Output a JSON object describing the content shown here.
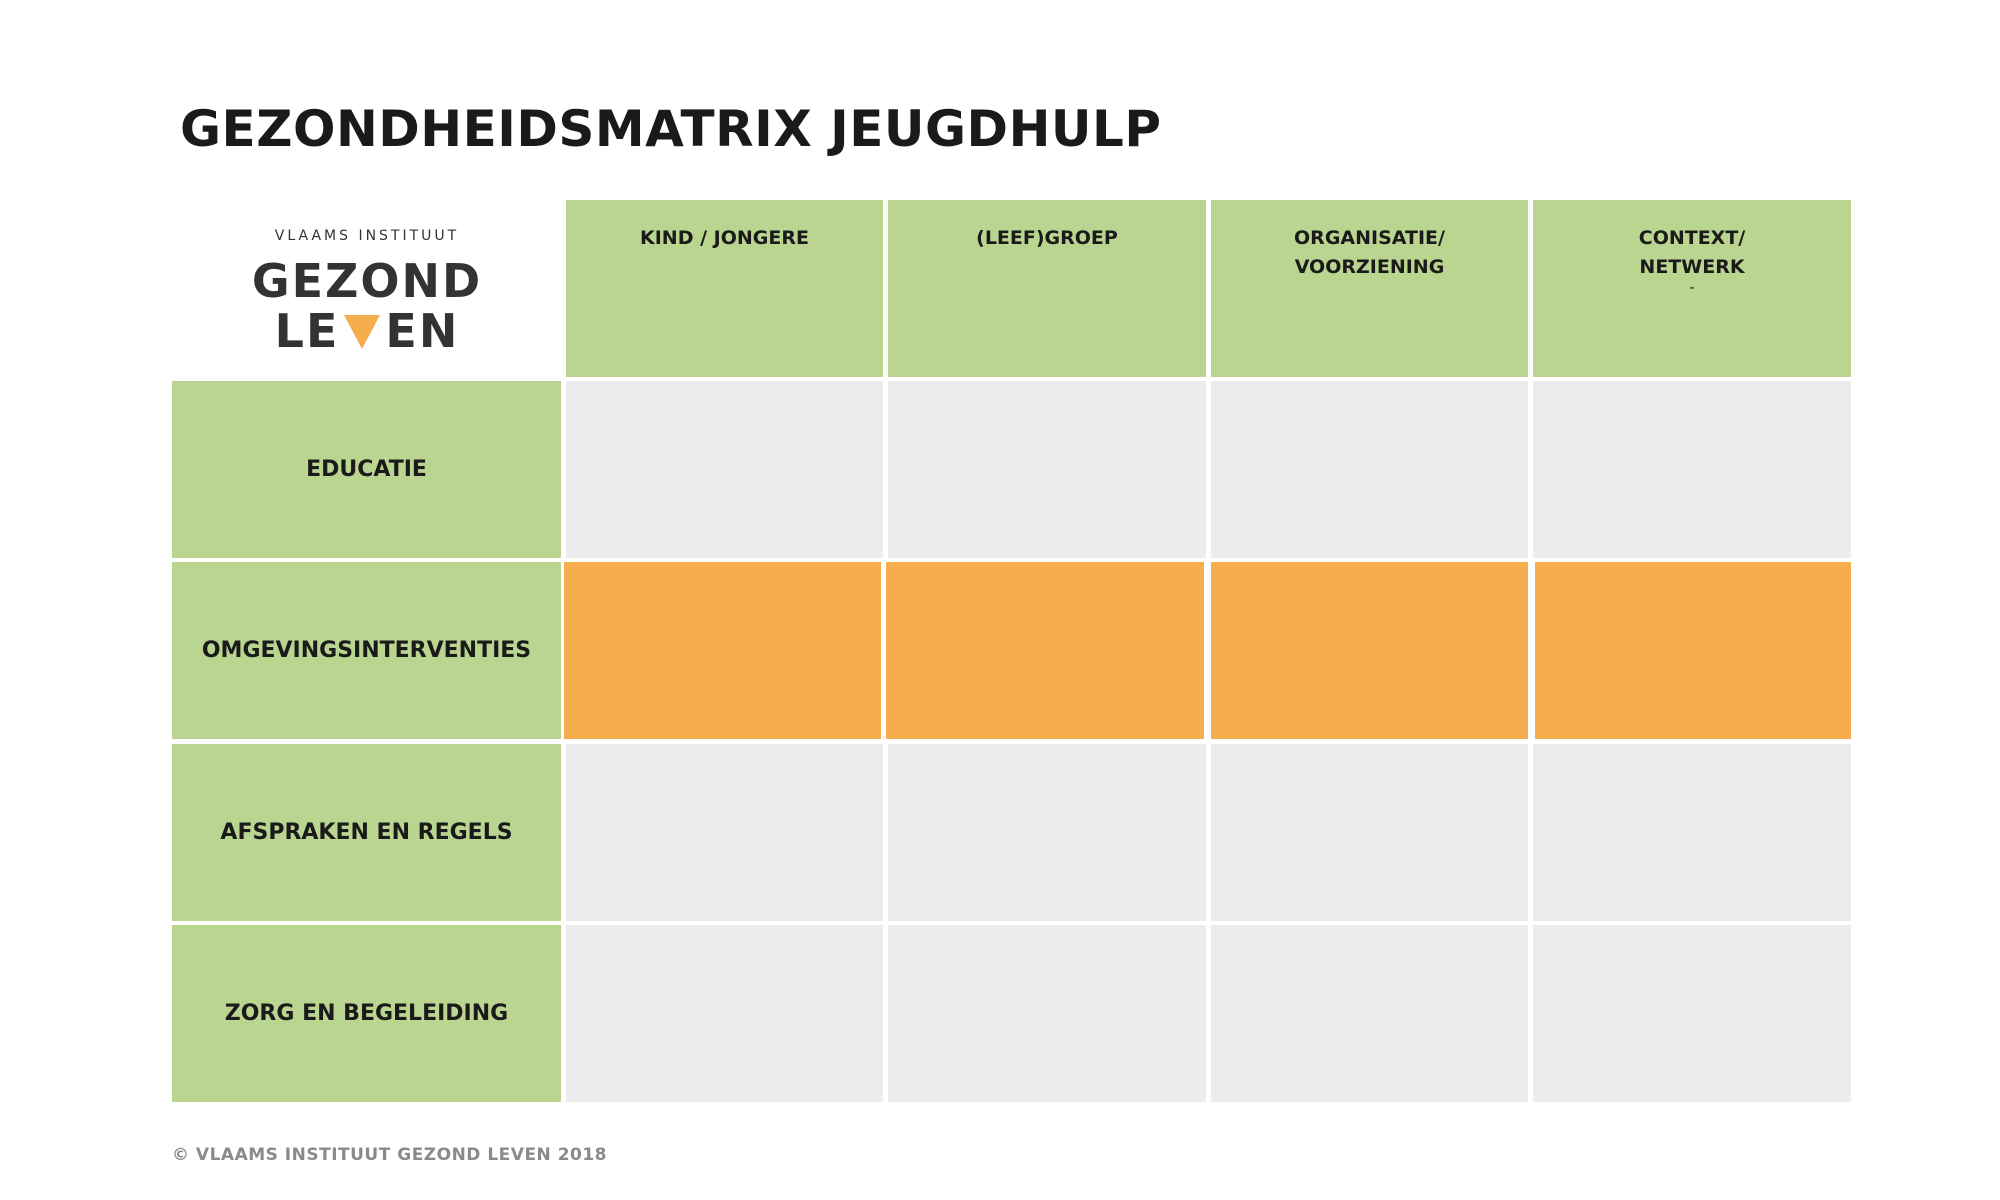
{
  "title": "GEZONDHEIDSMATRIX JEUGDHULP",
  "logo": {
    "pre": "VLAAMS INSTITUUT",
    "line1": "GEZOND",
    "line2_left": "LE",
    "line2_right": "EN",
    "accent_color": "#f5ad4d"
  },
  "columns": [
    {
      "line1": "KIND / JONGERE",
      "line2": ""
    },
    {
      "line1": "(LEEF)GROEP",
      "line2": ""
    },
    {
      "line1": "ORGANISATIE/",
      "line2": "VOORZIENING"
    },
    {
      "line1": "CONTEXT/",
      "line2": "NETWERK",
      "line3": "-"
    }
  ],
  "rows": [
    {
      "label": "EDUCATIE",
      "fill": "gray"
    },
    {
      "label": "OMGEVINGSINTERVENTIES",
      "fill": "orange"
    },
    {
      "label": "AFSPRAKEN EN REGELS",
      "fill": "gray"
    },
    {
      "label": "ZORG EN BEGELEIDING",
      "fill": "gray"
    }
  ],
  "colors": {
    "green": "#b9d590",
    "gray": "#ececec",
    "orange": "#f5ad4d"
  },
  "footer": "© VLAAMS INSTITUUT GEZOND LEVEN 2018"
}
